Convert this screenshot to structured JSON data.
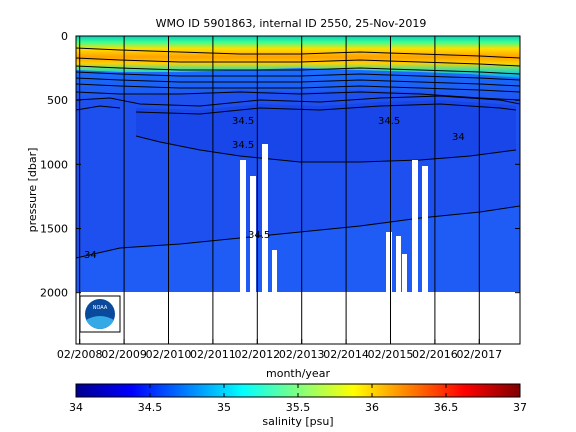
{
  "chart_data": {
    "type": "heatmap",
    "title": "WMO ID 5901863, internal ID 2550, 25-Nov-2019",
    "xlabel": "month/year",
    "ylabel": "pressure [dbar]",
    "x_ticks": [
      "02/2008",
      "02/2009",
      "02/2010",
      "02/2011",
      "02/2012",
      "02/2013",
      "02/2014",
      "02/2015",
      "02/2016",
      "02/2017"
    ],
    "x_range": [
      "01/2008",
      "12/2017"
    ],
    "y_ticks": [
      0,
      500,
      1000,
      1500,
      2000
    ],
    "y_range": [
      0,
      2400
    ],
    "y_reversed": true,
    "colorbar": {
      "label": "salinity [psu]",
      "ticks": [
        34,
        34.5,
        35,
        35.5,
        36,
        36.5,
        37
      ],
      "range": [
        34,
        37
      ],
      "colormap": "jet"
    },
    "contour_labels": [
      "34.5",
      "34.5",
      "34.5",
      "34.5",
      "34",
      "34"
    ],
    "logo": "NOAA",
    "fill_color": "#1e50f0",
    "data_gaps": [
      {
        "from": "04/2011",
        "to": "06/2012",
        "pressure_from": 750,
        "pressure_to": 2000
      },
      {
        "from": "01/2015",
        "to": "07/2015",
        "pressure_from": 1000,
        "pressure_to": 2000
      }
    ]
  }
}
